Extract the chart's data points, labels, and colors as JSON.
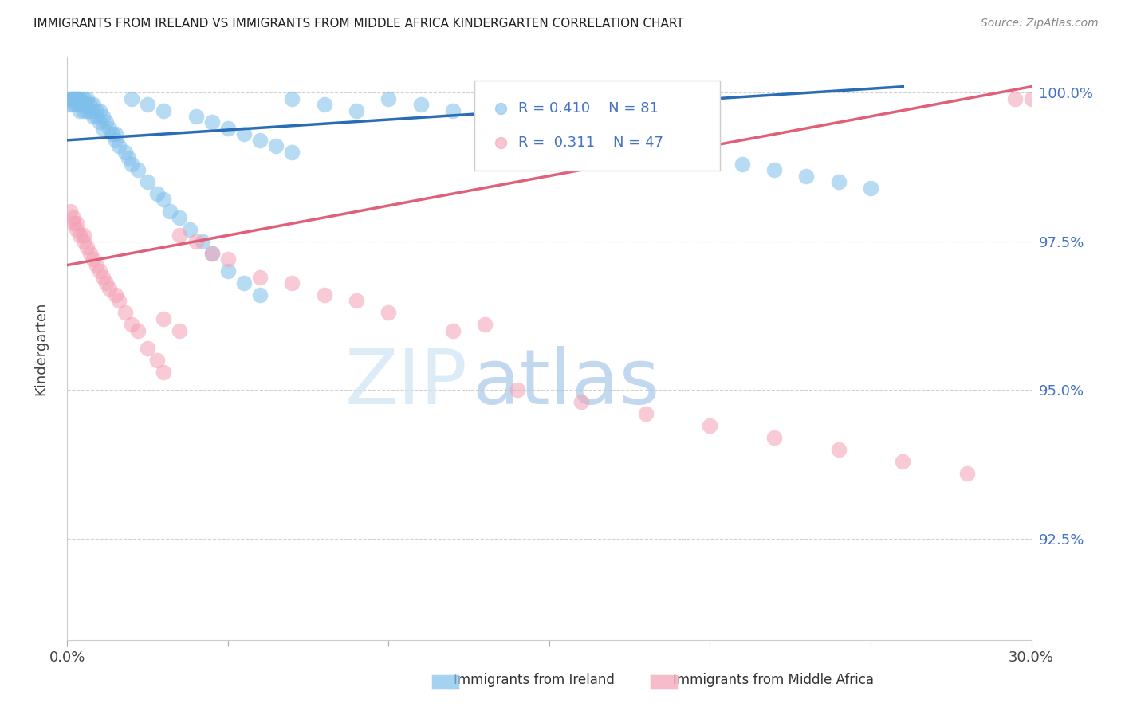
{
  "title": "IMMIGRANTS FROM IRELAND VS IMMIGRANTS FROM MIDDLE AFRICA KINDERGARTEN CORRELATION CHART",
  "source": "Source: ZipAtlas.com",
  "ylabel": "Kindergarten",
  "ytick_labels": [
    "100.0%",
    "97.5%",
    "95.0%",
    "92.5%"
  ],
  "ytick_values": [
    1.0,
    0.975,
    0.95,
    0.925
  ],
  "xlim": [
    0.0,
    0.3
  ],
  "ylim": [
    0.908,
    1.006
  ],
  "legend_ireland": "Immigrants from Ireland",
  "legend_africa": "Immigrants from Middle Africa",
  "R_ireland": "0.410",
  "N_ireland": "81",
  "R_africa": "0.311",
  "N_africa": "47",
  "color_ireland": "#7fbfeb",
  "color_africa": "#f4a0b5",
  "trendline_ireland_color": "#2a6db5",
  "trendline_africa_color": "#e0607a",
  "ireland_trendline": [
    [
      0.0,
      0.992
    ],
    [
      0.26,
      1.001
    ]
  ],
  "africa_trendline": [
    [
      0.0,
      0.971
    ],
    [
      0.3,
      1.001
    ]
  ],
  "ireland_points_x": [
    0.001,
    0.001,
    0.001,
    0.002,
    0.002,
    0.002,
    0.002,
    0.003,
    0.003,
    0.003,
    0.003,
    0.004,
    0.004,
    0.004,
    0.004,
    0.005,
    0.005,
    0.005,
    0.006,
    0.006,
    0.006,
    0.007,
    0.007,
    0.008,
    0.008,
    0.009,
    0.009,
    0.01,
    0.01,
    0.011,
    0.011,
    0.012,
    0.013,
    0.014,
    0.015,
    0.015,
    0.016,
    0.018,
    0.019,
    0.02,
    0.022,
    0.025,
    0.028,
    0.03,
    0.032,
    0.035,
    0.038,
    0.042,
    0.045,
    0.05,
    0.055,
    0.06,
    0.07,
    0.08,
    0.09,
    0.1,
    0.11,
    0.12,
    0.13,
    0.14,
    0.15,
    0.16,
    0.17,
    0.18,
    0.19,
    0.2,
    0.21,
    0.22,
    0.23,
    0.24,
    0.25,
    0.02,
    0.025,
    0.03,
    0.04,
    0.045,
    0.05,
    0.055,
    0.06,
    0.065,
    0.07
  ],
  "ireland_points_y": [
    0.999,
    0.999,
    0.998,
    0.999,
    0.999,
    0.999,
    0.998,
    0.999,
    0.999,
    0.999,
    0.998,
    0.999,
    0.999,
    0.998,
    0.997,
    0.999,
    0.998,
    0.997,
    0.999,
    0.998,
    0.997,
    0.998,
    0.997,
    0.998,
    0.996,
    0.997,
    0.996,
    0.997,
    0.995,
    0.996,
    0.994,
    0.995,
    0.994,
    0.993,
    0.993,
    0.992,
    0.991,
    0.99,
    0.989,
    0.988,
    0.987,
    0.985,
    0.983,
    0.982,
    0.98,
    0.979,
    0.977,
    0.975,
    0.973,
    0.97,
    0.968,
    0.966,
    0.999,
    0.998,
    0.997,
    0.999,
    0.998,
    0.997,
    0.996,
    0.995,
    0.994,
    0.993,
    0.992,
    0.991,
    0.99,
    0.989,
    0.988,
    0.987,
    0.986,
    0.985,
    0.984,
    0.999,
    0.998,
    0.997,
    0.996,
    0.995,
    0.994,
    0.993,
    0.992,
    0.991,
    0.99
  ],
  "africa_points_x": [
    0.001,
    0.002,
    0.002,
    0.003,
    0.003,
    0.004,
    0.005,
    0.005,
    0.006,
    0.007,
    0.008,
    0.009,
    0.01,
    0.011,
    0.012,
    0.013,
    0.015,
    0.016,
    0.018,
    0.02,
    0.022,
    0.025,
    0.028,
    0.03,
    0.035,
    0.04,
    0.045,
    0.05,
    0.06,
    0.07,
    0.08,
    0.09,
    0.1,
    0.12,
    0.14,
    0.16,
    0.18,
    0.2,
    0.22,
    0.24,
    0.26,
    0.28,
    0.295,
    0.03,
    0.035,
    0.13,
    0.3
  ],
  "africa_points_y": [
    0.98,
    0.979,
    0.978,
    0.978,
    0.977,
    0.976,
    0.976,
    0.975,
    0.974,
    0.973,
    0.972,
    0.971,
    0.97,
    0.969,
    0.968,
    0.967,
    0.966,
    0.965,
    0.963,
    0.961,
    0.96,
    0.957,
    0.955,
    0.953,
    0.976,
    0.975,
    0.973,
    0.972,
    0.969,
    0.968,
    0.966,
    0.965,
    0.963,
    0.96,
    0.95,
    0.948,
    0.946,
    0.944,
    0.942,
    0.94,
    0.938,
    0.936,
    0.999,
    0.962,
    0.96,
    0.961,
    0.999
  ]
}
